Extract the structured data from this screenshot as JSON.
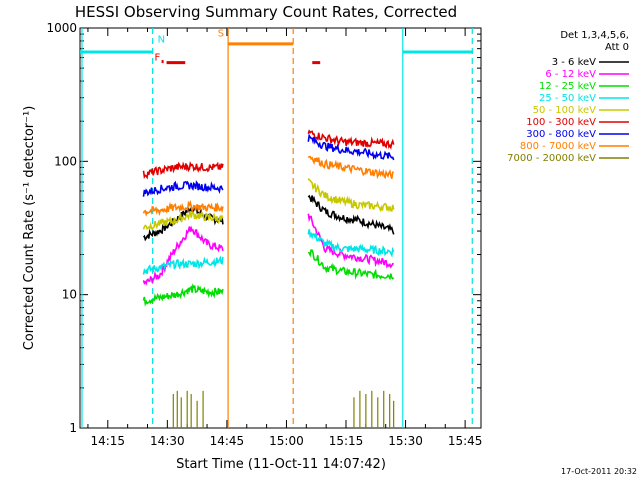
{
  "chart_data": {
    "type": "line",
    "title": "HESSI Observing Summary Count Rates, Corrected",
    "xlabel": "Start Time (11-Oct-11 14:07:42)",
    "ylabel": "Corrected Count Rate (s⁻¹ detector⁻¹)",
    "ylog": true,
    "ylim": [
      1,
      1000
    ],
    "xlim_min": [
      848,
      949
    ],
    "x_unit": "minutes after 00:00 UT",
    "x_ticks": [
      {
        "min": 855,
        "label": "14:15"
      },
      {
        "min": 870,
        "label": "14:30"
      },
      {
        "min": 885,
        "label": "14:45"
      },
      {
        "min": 900,
        "label": "15:00"
      },
      {
        "min": 915,
        "label": "15:15"
      },
      {
        "min": 930,
        "label": "15:30"
      },
      {
        "min": 945,
        "label": "15:45"
      }
    ],
    "y_ticks": [
      {
        "value": 1,
        "label": "1"
      },
      {
        "value": 10,
        "label": "10"
      },
      {
        "value": 100,
        "label": "100"
      },
      {
        "value": 1000,
        "label": "1000"
      }
    ],
    "legend": {
      "position": "right",
      "header": [
        "Det 1,3,4,5,6,",
        "Att 0"
      ],
      "entries": [
        {
          "label": "3 - 6 keV",
          "color": "#000000"
        },
        {
          "label": "6 - 12 keV",
          "color": "#ff00ff"
        },
        {
          "label": "12 - 25 keV",
          "color": "#00dd00"
        },
        {
          "label": "25 - 50 keV",
          "color": "#00e5e5"
        },
        {
          "label": "50 - 100 keV",
          "color": "#c8c800"
        },
        {
          "label": "100 - 300 keV",
          "color": "#e00000"
        },
        {
          "label": "300 - 800 keV",
          "color": "#0000ee"
        },
        {
          "label": "800 - 7000 keV",
          "color": "#ff7f00"
        },
        {
          "label": "7000 - 20000 keV",
          "color": "#808000"
        }
      ]
    },
    "segments": [
      {
        "t_start": 864.0,
        "t_end": 884.0
      },
      {
        "t_start": 905.5,
        "t_end": 927.0
      }
    ],
    "series": [
      {
        "name": "3 - 6 keV",
        "color": "#000000",
        "seg": [
          [
            27,
            30,
            36,
            45,
            38,
            36
          ],
          [
            55,
            42,
            38,
            36,
            33,
            30
          ]
        ]
      },
      {
        "name": "6 - 12 keV",
        "color": "#ff00ff",
        "seg": [
          [
            12,
            14,
            22,
            32,
            24,
            22
          ],
          [
            40,
            22,
            20,
            19,
            18,
            17
          ]
        ]
      },
      {
        "name": "12 - 25 keV",
        "color": "#00dd00",
        "seg": [
          [
            9,
            9.5,
            10,
            11,
            10.5,
            10.5
          ],
          [
            22,
            16,
            15,
            14.5,
            14,
            14
          ]
        ]
      },
      {
        "name": "25 - 50 keV",
        "color": "#00e5e5",
        "seg": [
          [
            15,
            16,
            17,
            17,
            17.5,
            18
          ],
          [
            30,
            24,
            22,
            22,
            21.5,
            21
          ]
        ]
      },
      {
        "name": "50 - 100 keV",
        "color": "#c8c800",
        "seg": [
          [
            32,
            34,
            36,
            40,
            38,
            37
          ],
          [
            70,
            55,
            50,
            47,
            46,
            45
          ]
        ]
      },
      {
        "name": "100 - 300 keV",
        "color": "#e00000",
        "seg": [
          [
            80,
            85,
            90,
            92,
            90,
            90
          ],
          [
            165,
            150,
            140,
            138,
            136,
            135
          ]
        ]
      },
      {
        "name": "300 - 800 keV",
        "color": "#0000ee",
        "seg": [
          [
            58,
            62,
            65,
            66,
            64,
            63
          ],
          [
            150,
            130,
            122,
            118,
            112,
            108
          ]
        ]
      },
      {
        "name": "800 - 7000 keV",
        "color": "#ff7f00",
        "seg": [
          [
            42,
            43,
            45,
            46,
            45,
            45
          ],
          [
            110,
            95,
            90,
            86,
            82,
            78
          ]
        ]
      },
      {
        "name": "7000 - 20000 keV",
        "color": "#808000",
        "spikes": [
          [
            871.5,
            1.8
          ],
          [
            872.5,
            1.9
          ],
          [
            873.5,
            1.7
          ],
          [
            875,
            1.9
          ],
          [
            876,
            1.8
          ],
          [
            877.5,
            1.6
          ],
          [
            879,
            1.9
          ],
          [
            917,
            1.7
          ],
          [
            918.5,
            1.9
          ],
          [
            920,
            1.8
          ],
          [
            921.5,
            1.9
          ],
          [
            923,
            1.7
          ],
          [
            924.5,
            1.9
          ],
          [
            926,
            1.8
          ],
          [
            927,
            1.6
          ]
        ]
      }
    ],
    "annotations": [
      {
        "text": "F",
        "color": "#e00000",
        "t": 867.5,
        "y": 570
      },
      {
        "text": "N",
        "color": "#00e5e5",
        "t": 868.5,
        "y": 780
      },
      {
        "text": "S",
        "color": "#ff7f00",
        "t": 883.5,
        "y": 860
      }
    ],
    "flags": [
      {
        "name": "night",
        "color": "#00e5e5",
        "y": 660,
        "ranges": [
          [
            848,
            866.3
          ],
          [
            929.3,
            947
          ]
        ]
      },
      {
        "name": "saa",
        "color": "#ff7f00",
        "y": 760,
        "ranges": [
          [
            885.3,
            901.7
          ]
        ]
      },
      {
        "name": "flare",
        "color": "#e00000",
        "y": 550,
        "ranges": [
          [
            869.8,
            874.5
          ],
          [
            906.5,
            908.5
          ]
        ]
      }
    ],
    "flag_points": [
      {
        "color": "#e00000",
        "t": 868.8,
        "y": 560
      }
    ],
    "vlines": [
      {
        "t": 848.5,
        "color": "#00e5e5",
        "style": "solid"
      },
      {
        "t": 866.3,
        "color": "#00e5e5",
        "style": "dashed"
      },
      {
        "t": 885.3,
        "color": "#ff7f00",
        "style": "solid"
      },
      {
        "t": 901.7,
        "color": "#ff7f00",
        "style": "dashed"
      },
      {
        "t": 929.3,
        "color": "#00e5e5",
        "style": "solid"
      },
      {
        "t": 946.8,
        "color": "#00e5e5",
        "style": "dashed"
      }
    ],
    "timestamp": "17-Oct-2011 20:32"
  }
}
